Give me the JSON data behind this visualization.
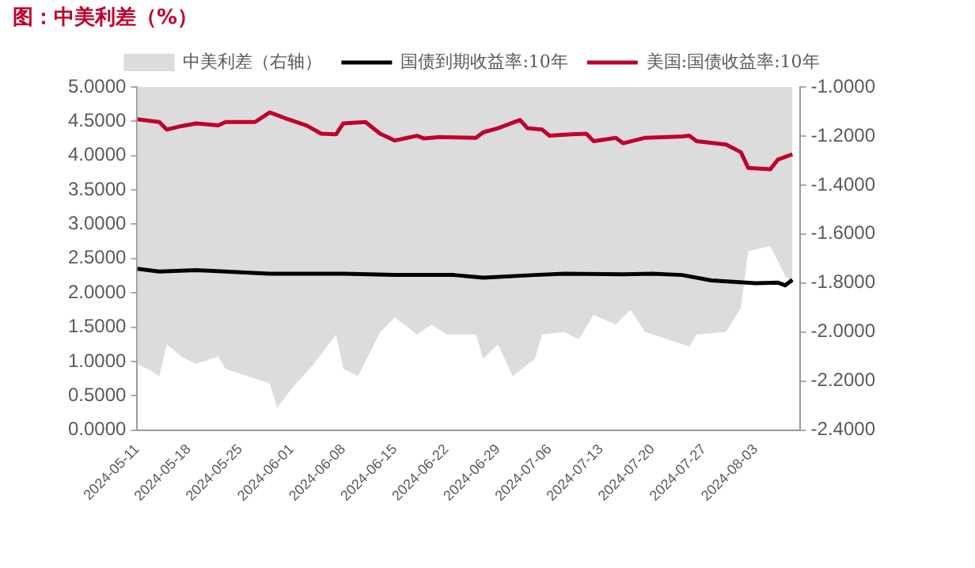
{
  "chart_data": {
    "type": "line",
    "title": "图：中美利差（%）",
    "legend": "top",
    "grid": false,
    "marker": "none",
    "xlim": [
      "2024-05-11",
      "2024-08-09"
    ],
    "xticks": [
      "2024-05-11",
      "2024-05-18",
      "2024-05-25",
      "2024-06-01",
      "2024-06-08",
      "2024-06-15",
      "2024-06-22",
      "2024-06-29",
      "2024-07-06",
      "2024-07-13",
      "2024-07-20",
      "2024-07-27",
      "2024-08-03"
    ],
    "ylim": [
      0,
      5
    ],
    "yticks": [
      {
        "value": 0,
        "label": "0.0000"
      },
      {
        "value": 0.5,
        "label": "0.5000"
      },
      {
        "value": 1,
        "label": "1.0000"
      },
      {
        "value": 1.5,
        "label": "1.5000"
      },
      {
        "value": 2,
        "label": "2.0000"
      },
      {
        "value": 2.5,
        "label": "2.5000"
      },
      {
        "value": 3,
        "label": "3.0000"
      },
      {
        "value": 3.5,
        "label": "3.5000"
      },
      {
        "value": 4,
        "label": "4.0000"
      },
      {
        "value": 4.5,
        "label": "4.5000"
      },
      {
        "value": 5,
        "label": "5.0000"
      }
    ],
    "y2lim": [
      -2.4,
      -1
    ],
    "y2ticks": [
      {
        "value": -2.4,
        "label": "-2.4000"
      },
      {
        "value": -2.2,
        "label": "-2.2000"
      },
      {
        "value": -2,
        "label": "-2.0000"
      },
      {
        "value": -1.8,
        "label": "-1.8000"
      },
      {
        "value": -1.6,
        "label": "-1.6000"
      },
      {
        "value": -1.4,
        "label": "-1.4000"
      },
      {
        "value": -1.2,
        "label": "-1.2000"
      },
      {
        "value": -1,
        "label": "-1.0000"
      }
    ],
    "series": [
      {
        "name": "中美利差（右轴）",
        "type": "area",
        "axis": "y2",
        "color": "#dcdcdc",
        "x": [
          "2024-05-11",
          "2024-05-13",
          "2024-05-14",
          "2024-05-15",
          "2024-05-17",
          "2024-05-19",
          "2024-05-22",
          "2024-05-23",
          "2024-05-26",
          "2024-05-29",
          "2024-05-30",
          "2024-06-01",
          "2024-06-04",
          "2024-06-07",
          "2024-06-08",
          "2024-06-10",
          "2024-06-13",
          "2024-06-15",
          "2024-06-18",
          "2024-06-20",
          "2024-06-22",
          "2024-06-26",
          "2024-06-27",
          "2024-06-29",
          "2024-07-01",
          "2024-07-04",
          "2024-07-05",
          "2024-07-08",
          "2024-07-10",
          "2024-07-12",
          "2024-07-15",
          "2024-07-17",
          "2024-07-19",
          "2024-07-23",
          "2024-07-25",
          "2024-07-26",
          "2024-07-30",
          "2024-08-01",
          "2024-08-02",
          "2024-08-05",
          "2024-08-07",
          "2024-08-08"
        ],
        "values": [
          -2.13,
          -2.16,
          -2.18,
          -2.05,
          -2.1,
          -2.13,
          -2.1,
          -2.15,
          -2.18,
          -2.21,
          -2.31,
          -2.23,
          -2.13,
          -2.01,
          -2.15,
          -2.18,
          -2.0,
          -1.94,
          -2.01,
          -1.97,
          -2.01,
          -2.01,
          -2.11,
          -2.05,
          -2.18,
          -2.11,
          -2.01,
          -2.0,
          -2.03,
          -1.93,
          -1.97,
          -1.91,
          -2.0,
          -2.04,
          -2.06,
          -2.01,
          -2.0,
          -1.9,
          -1.67,
          -1.65,
          -1.77,
          -1.8
        ]
      },
      {
        "name": "国债到期收益率:10年",
        "type": "line",
        "color": "#000000",
        "x": [
          "2024-05-11",
          "2024-05-14",
          "2024-05-19",
          "2024-05-29",
          "2024-06-08",
          "2024-06-15",
          "2024-06-23",
          "2024-06-27",
          "2024-07-04",
          "2024-07-08",
          "2024-07-16",
          "2024-07-20",
          "2024-07-24",
          "2024-07-28",
          "2024-08-03",
          "2024-08-06",
          "2024-08-07",
          "2024-08-08"
        ],
        "values": [
          2.35,
          2.31,
          2.33,
          2.28,
          2.28,
          2.26,
          2.26,
          2.22,
          2.26,
          2.28,
          2.27,
          2.28,
          2.26,
          2.18,
          2.14,
          2.15,
          2.11,
          2.19
        ]
      },
      {
        "name": "美国:国债收益率:10年",
        "type": "line",
        "color": "#c0002a",
        "x": [
          "2024-05-11",
          "2024-05-14",
          "2024-05-15",
          "2024-05-17",
          "2024-05-19",
          "2024-05-22",
          "2024-05-23",
          "2024-05-27",
          "2024-05-29",
          "2024-05-31",
          "2024-06-03",
          "2024-06-05",
          "2024-06-07",
          "2024-06-08",
          "2024-06-11",
          "2024-06-13",
          "2024-06-15",
          "2024-06-18",
          "2024-06-19",
          "2024-06-21",
          "2024-06-26",
          "2024-06-27",
          "2024-06-29",
          "2024-07-02",
          "2024-07-03",
          "2024-07-05",
          "2024-07-06",
          "2024-07-09",
          "2024-07-11",
          "2024-07-12",
          "2024-07-15",
          "2024-07-16",
          "2024-07-19",
          "2024-07-24",
          "2024-07-25",
          "2024-07-26",
          "2024-07-30",
          "2024-08-01",
          "2024-08-02",
          "2024-08-05",
          "2024-08-06",
          "2024-08-08"
        ],
        "values": [
          4.53,
          4.49,
          4.38,
          4.43,
          4.47,
          4.44,
          4.49,
          4.49,
          4.63,
          4.55,
          4.44,
          4.32,
          4.31,
          4.47,
          4.49,
          4.32,
          4.22,
          4.29,
          4.25,
          4.27,
          4.26,
          4.34,
          4.4,
          4.52,
          4.4,
          4.38,
          4.29,
          4.31,
          4.32,
          4.21,
          4.26,
          4.18,
          4.26,
          4.28,
          4.29,
          4.21,
          4.16,
          4.05,
          3.82,
          3.8,
          3.94,
          4.02
        ]
      }
    ]
  }
}
